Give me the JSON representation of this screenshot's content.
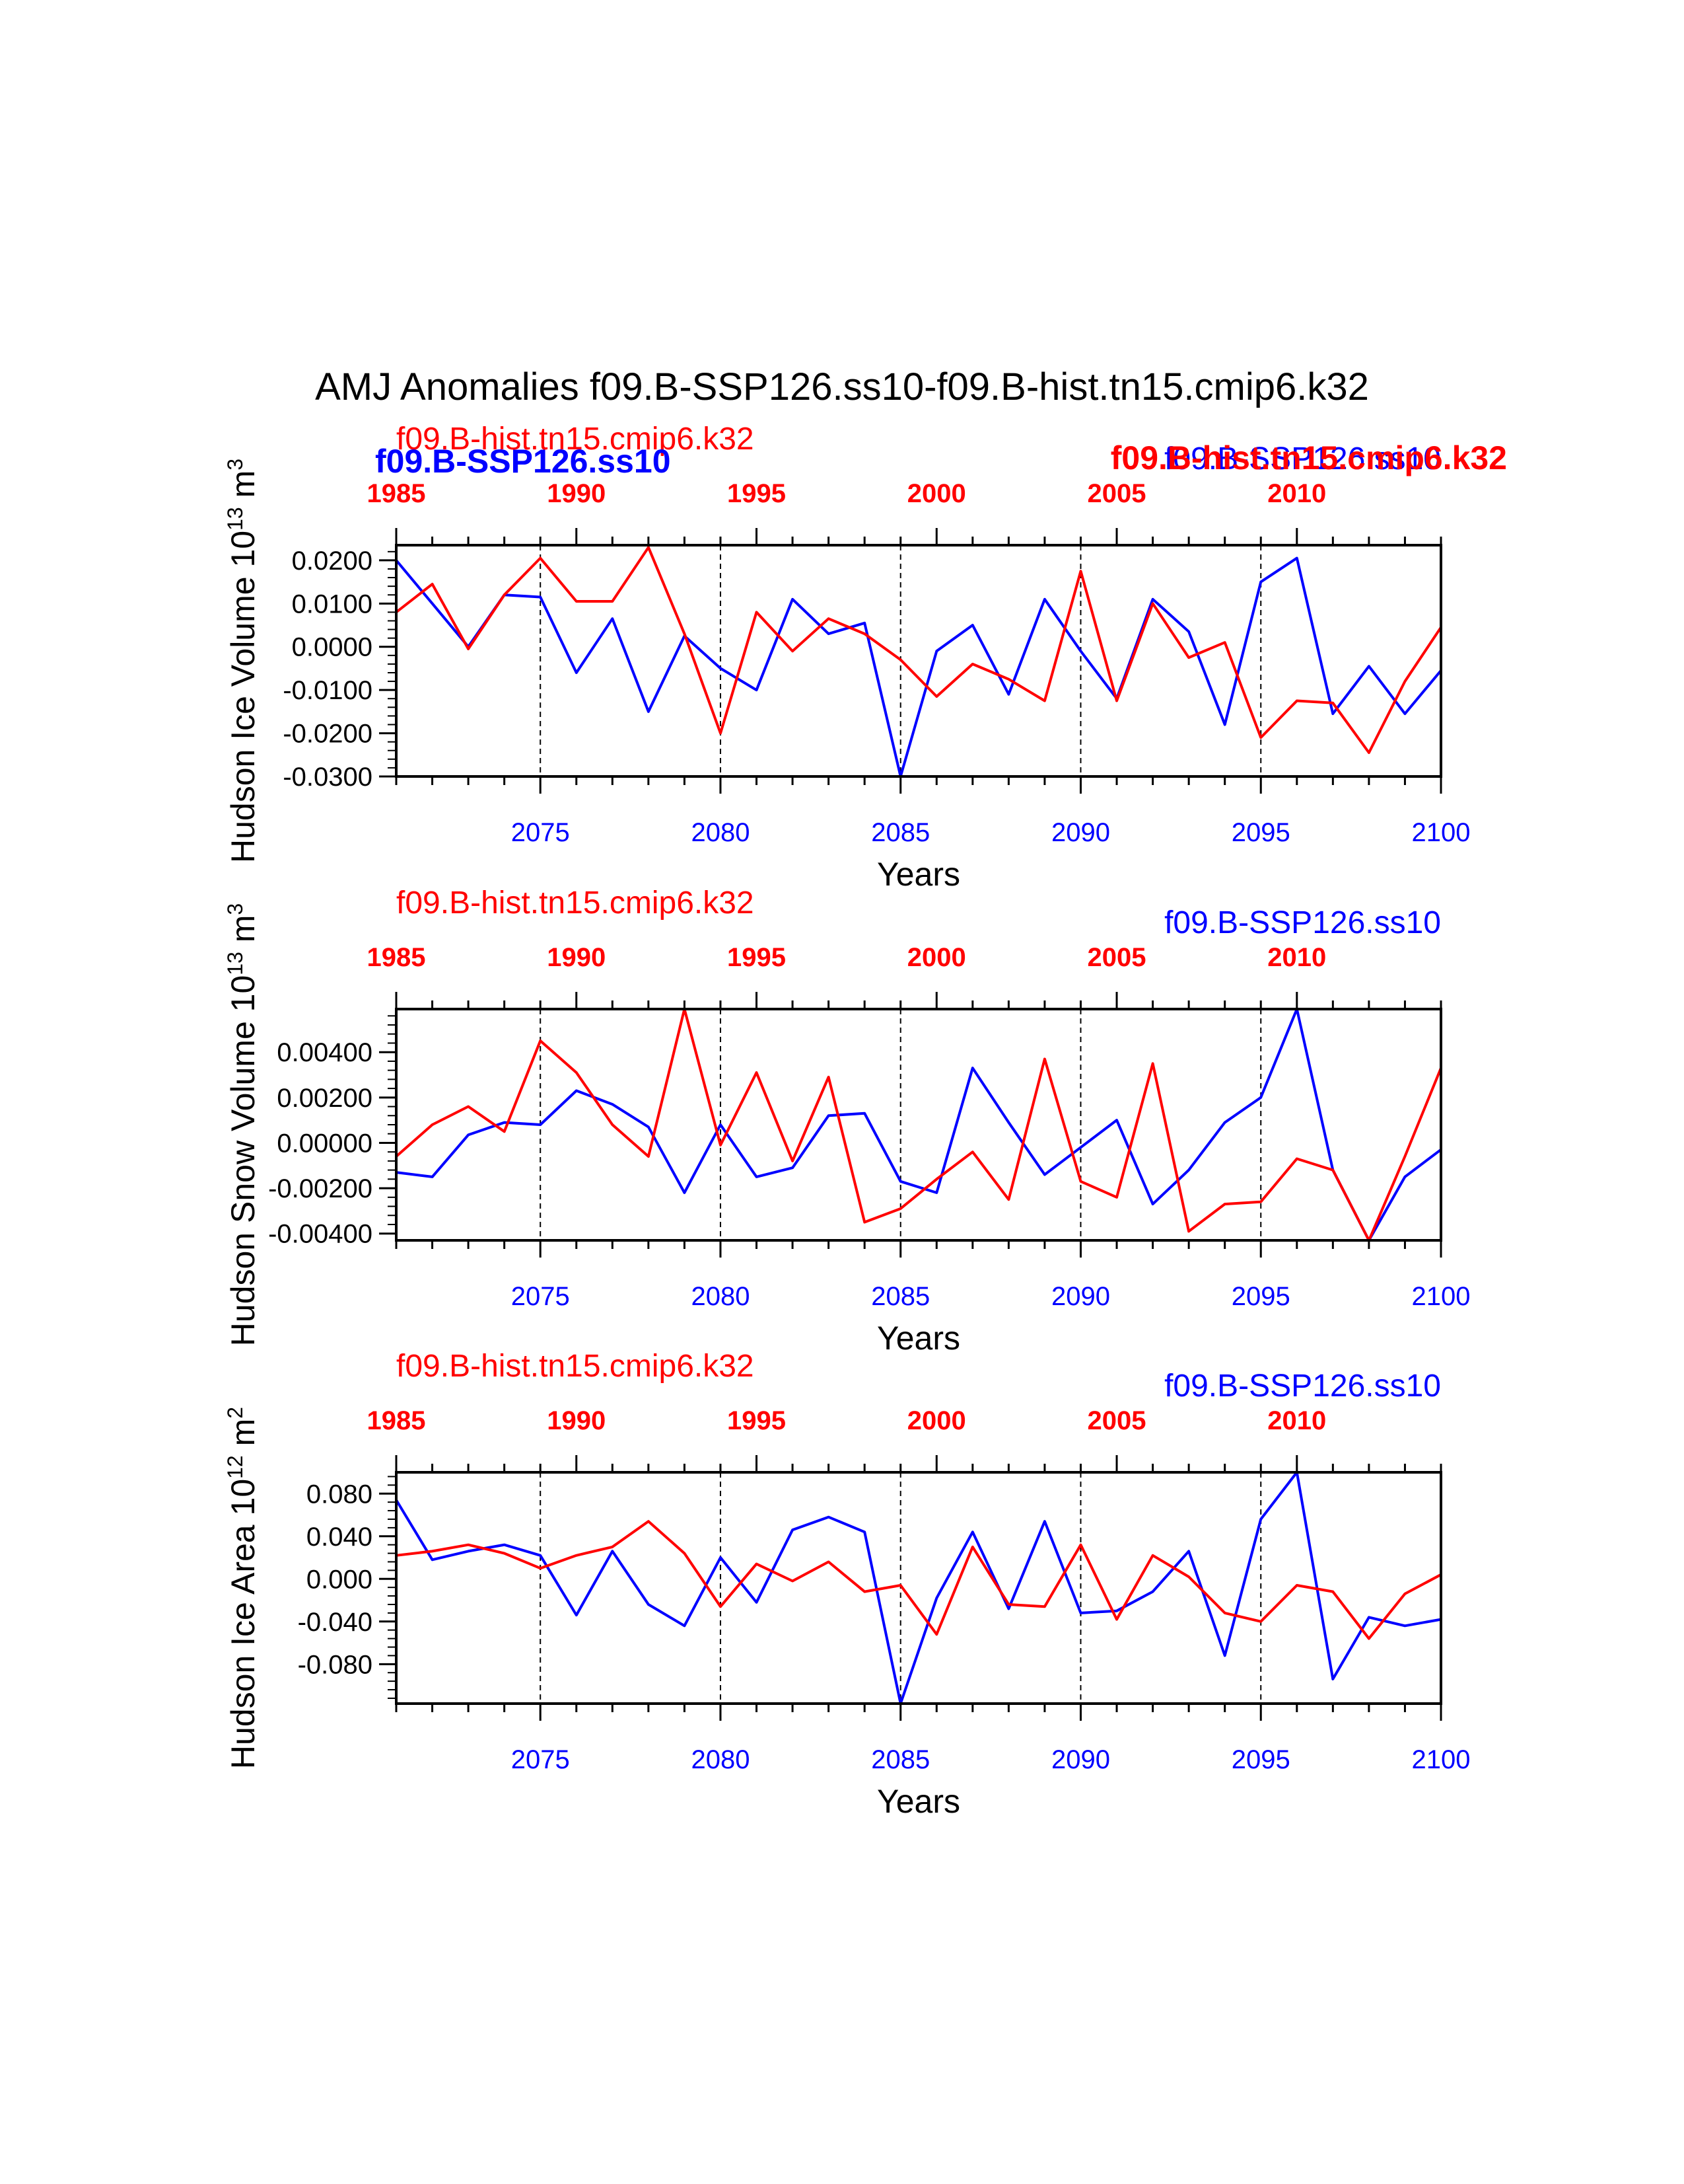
{
  "title": "AMJ Anomalies f09.B-SSP126.ss10-f09.B-hist.tn15.cmip6.k32",
  "colors": {
    "ssp": "#0000ff",
    "hist": "#ff0000",
    "axis": "#000000"
  },
  "bottom_axis": {
    "ticks": [
      "2075",
      "2080",
      "2085",
      "2090",
      "2095",
      "2100"
    ],
    "range": [
      2071,
      2100
    ]
  },
  "top_axis": {
    "ticks": [
      "1985",
      "1990",
      "1995",
      "2000",
      "2005",
      "2010"
    ],
    "range": [
      1985,
      2014
    ]
  },
  "chart_data": [
    {
      "type": "line",
      "ylabel": "Hudson Ice Volume 10",
      "ylabel_sup": "13",
      "ylabel_unit": " m",
      "ylabel_unit_sup": "3",
      "xlabel": "Years",
      "ylim": [
        -0.03,
        0.0235
      ],
      "yticks": [
        "0.0200",
        "0.0100",
        "0.0000",
        "-0.0100",
        "-0.0200",
        "-0.0300"
      ],
      "ytick_values": [
        0.02,
        0.01,
        0.0,
        -0.01,
        -0.02,
        -0.03
      ],
      "labels": {
        "hist_top": "f09.B-hist.tn15.cmip6.k32",
        "ssp_top": "f09.B-SSP126.ss10",
        "ssp_overlay_bold": "f09.B-SSP126.ss10",
        "hist_overlay_bold": "f09.B-hist.tn15.cmip6.k32"
      },
      "series": [
        {
          "name": "f09.B-SSP126.ss10",
          "color": "#0000ff",
          "x_start": 2071,
          "values": [
            0.02,
            0.01,
            0.0,
            0.012,
            0.0115,
            -0.006,
            0.0065,
            -0.015,
            0.0025,
            -0.005,
            -0.01,
            0.011,
            0.003,
            0.0055,
            -0.03,
            -0.001,
            0.005,
            -0.011,
            0.011,
            -0.001,
            -0.012,
            0.011,
            0.0035,
            -0.018,
            0.015,
            0.0205,
            -0.0155,
            -0.0045,
            -0.0155,
            -0.0055
          ]
        },
        {
          "name": "f09.B-hist.tn15.cmip6.k32",
          "color": "#ff0000",
          "x_start": 1985,
          "values": [
            0.008,
            0.0145,
            -0.0005,
            0.012,
            0.0205,
            0.0105,
            0.0105,
            0.023,
            0.003,
            -0.02,
            0.008,
            -0.001,
            0.0065,
            0.003,
            -0.003,
            -0.0115,
            -0.004,
            -0.0075,
            -0.0125,
            0.0175,
            -0.0125,
            0.01,
            -0.0025,
            0.001,
            -0.021,
            -0.0125,
            -0.013,
            -0.0245,
            -0.008,
            0.0045
          ]
        }
      ]
    },
    {
      "type": "line",
      "ylabel": "Hudson Snow Volume 10",
      "ylabel_sup": "13",
      "ylabel_unit": " m",
      "ylabel_unit_sup": "3",
      "xlabel": "Years",
      "ylim": [
        -0.0043,
        0.0059
      ],
      "yticks": [
        "0.00400",
        "0.00200",
        "0.00000",
        "-0.00200",
        "-0.00400"
      ],
      "ytick_values": [
        0.004,
        0.002,
        0.0,
        -0.002,
        -0.004
      ],
      "labels": {
        "hist_top": "f09.B-hist.tn15.cmip6.k32",
        "ssp_top": "f09.B-SSP126.ss10"
      },
      "series": [
        {
          "name": "f09.B-SSP126.ss10",
          "color": "#0000ff",
          "x_start": 2071,
          "values": [
            -0.0013,
            -0.0015,
            0.00035,
            0.0009,
            0.0008,
            0.0023,
            0.0017,
            0.0007,
            -0.0022,
            0.0008,
            -0.0015,
            -0.0011,
            0.0012,
            0.0013,
            -0.0017,
            -0.0022,
            0.0033,
            0.0009,
            -0.0014,
            -0.0002,
            0.001,
            -0.0027,
            -0.0012,
            0.0009,
            0.002,
            0.0059,
            -0.0012,
            -0.0043,
            -0.0015,
            -0.0003
          ]
        },
        {
          "name": "f09.B-hist.tn15.cmip6.k32",
          "color": "#ff0000",
          "x_start": 1985,
          "values": [
            -0.0006,
            0.0008,
            0.0016,
            0.0005,
            0.0045,
            0.0031,
            0.0008,
            -0.0006,
            0.0059,
            -0.0001,
            0.0031,
            -0.0008,
            0.0029,
            -0.0035,
            -0.0029,
            -0.0016,
            -0.0004,
            -0.0025,
            0.0037,
            -0.0017,
            -0.0024,
            0.0035,
            -0.0039,
            -0.0027,
            -0.0026,
            -0.0007,
            -0.0012,
            -0.0043,
            -0.0006,
            0.0033
          ]
        }
      ]
    },
    {
      "type": "line",
      "ylabel": "Hudson Ice Area 10",
      "ylabel_sup": "12",
      "ylabel_unit": " m",
      "ylabel_unit_sup": "2",
      "xlabel": "Years",
      "ylim": [
        -0.117,
        0.1
      ],
      "yticks": [
        "0.080",
        "0.040",
        "0.000",
        "-0.040",
        "-0.080"
      ],
      "ytick_values": [
        0.08,
        0.04,
        0.0,
        -0.04,
        -0.08
      ],
      "labels": {
        "hist_top": "f09.B-hist.tn15.cmip6.k32",
        "ssp_top": "f09.B-SSP126.ss10"
      },
      "series": [
        {
          "name": "f09.B-SSP126.ss10",
          "color": "#0000ff",
          "x_start": 2071,
          "values": [
            0.074,
            0.018,
            0.026,
            0.032,
            0.022,
            -0.034,
            0.026,
            -0.024,
            -0.044,
            0.02,
            -0.022,
            0.046,
            0.058,
            0.044,
            -0.117,
            -0.018,
            0.044,
            -0.028,
            0.054,
            -0.032,
            -0.03,
            -0.012,
            0.026,
            -0.072,
            0.056,
            0.1,
            -0.094,
            -0.036,
            -0.044,
            -0.038
          ]
        },
        {
          "name": "f09.B-hist.tn15.cmip6.k32",
          "color": "#ff0000",
          "x_start": 1985,
          "values": [
            0.022,
            0.026,
            0.032,
            0.024,
            0.01,
            0.022,
            0.03,
            0.054,
            0.024,
            -0.026,
            0.014,
            -0.002,
            0.016,
            -0.012,
            -0.006,
            -0.052,
            0.03,
            -0.024,
            -0.026,
            0.032,
            -0.038,
            0.022,
            0.002,
            -0.032,
            -0.04,
            -0.006,
            -0.012,
            -0.056,
            -0.014,
            0.004
          ]
        }
      ]
    }
  ]
}
